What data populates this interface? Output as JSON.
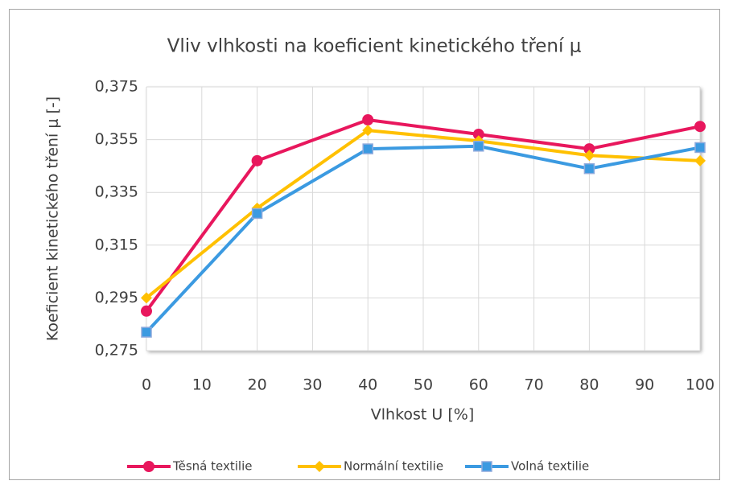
{
  "chart_data": {
    "type": "line",
    "title": "Vliv vlhkosti na koeficient kinetického tření μ",
    "x_label": "Vlhkost U [%]",
    "y_label": "Koeficient kinetického tření μ [-]",
    "x": [
      0,
      20,
      40,
      60,
      80,
      100
    ],
    "series": [
      {
        "name": "Těsná textilie",
        "color": "#e8175d",
        "marker": "circle",
        "values": [
          0.29,
          0.347,
          0.3625,
          0.357,
          0.3515,
          0.36
        ]
      },
      {
        "name": "Normální textilie",
        "color": "#ffc000",
        "marker": "diamond",
        "values": [
          0.295,
          0.329,
          0.3585,
          0.3545,
          0.349,
          0.347
        ]
      },
      {
        "name": "Volná textilie",
        "color": "#3b9ae1",
        "marker": "square",
        "values": [
          0.282,
          0.327,
          0.3515,
          0.3525,
          0.344,
          0.352
        ]
      }
    ],
    "xlim": [
      0,
      100
    ],
    "xticks": [
      0,
      10,
      20,
      30,
      40,
      50,
      60,
      70,
      80,
      90,
      100
    ],
    "ylim": [
      0.275,
      0.375
    ],
    "yticks": [
      {
        "value": 0.275,
        "label": "0,275"
      },
      {
        "value": 0.295,
        "label": "0,295"
      },
      {
        "value": 0.315,
        "label": "0,315"
      },
      {
        "value": 0.335,
        "label": "0,335"
      },
      {
        "value": 0.355,
        "label": "0,355"
      },
      {
        "value": 0.375,
        "label": "0,375"
      }
    ],
    "grid": true,
    "legend": "bottom"
  }
}
